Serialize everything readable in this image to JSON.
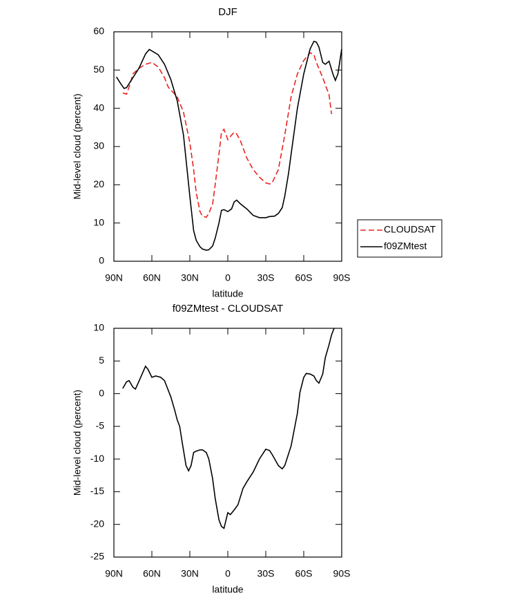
{
  "chart_data": [
    {
      "type": "line",
      "title": "DJF",
      "xlabel": "latitude",
      "ylabel": "Mid-level cloud (percent)",
      "xlim": [
        90,
        -90
      ],
      "xticks": [
        {
          "value": 90,
          "label": "90N"
        },
        {
          "value": 60,
          "label": "60N"
        },
        {
          "value": 30,
          "label": "30N"
        },
        0,
        {
          "value": -30,
          "label": "30S"
        },
        {
          "value": -60,
          "label": "60S"
        },
        {
          "value": -90,
          "label": "90S"
        }
      ],
      "ylim": [
        0,
        60
      ],
      "yticks": [
        0,
        10,
        20,
        30,
        40,
        50,
        60
      ],
      "legend": "outside right",
      "series": [
        {
          "name": "CLOUDSAT",
          "color": "#e8231f",
          "dash": true,
          "x": [
            83,
            80,
            77,
            75,
            70,
            65,
            60,
            55,
            50,
            47,
            45,
            40,
            35,
            30,
            27,
            25,
            22,
            20,
            17,
            15,
            12,
            10,
            7,
            5,
            3,
            0,
            -3,
            -5,
            -7,
            -10,
            -15,
            -20,
            -25,
            -30,
            -33,
            -35,
            -40,
            -45,
            -50,
            -55,
            -60,
            -65,
            -68,
            -70,
            -75,
            -80,
            -82
          ],
          "values": [
            44,
            43.7,
            46.5,
            49,
            50.5,
            51.5,
            52,
            50.8,
            48,
            45.5,
            44.8,
            43,
            39,
            31,
            24,
            18,
            13,
            11.8,
            11.5,
            12.5,
            15,
            20,
            28,
            33.7,
            34.5,
            31.8,
            33,
            33.7,
            33.3,
            31.5,
            27,
            24,
            22,
            20.5,
            20.2,
            20.5,
            24,
            33,
            43,
            49,
            52.5,
            54.5,
            54,
            52,
            48,
            43.5,
            38.5
          ]
        },
        {
          "name": "f09ZMtest",
          "color": "#000000",
          "dash": false,
          "x": [
            88,
            85,
            82,
            80,
            75,
            70,
            65,
            62,
            60,
            55,
            50,
            45,
            40,
            35,
            30,
            27,
            25,
            22,
            20,
            17,
            15,
            12,
            10,
            7,
            5,
            3,
            0,
            -3,
            -5,
            -7,
            -10,
            -15,
            -20,
            -25,
            -30,
            -33,
            -37,
            -40,
            -43,
            -45,
            -48,
            -50,
            -55,
            -60,
            -65,
            -68,
            -70,
            -72,
            -75,
            -77,
            -80,
            -83,
            -85,
            -87,
            -90
          ],
          "values": [
            48.2,
            46.6,
            45.2,
            45.4,
            48,
            50.6,
            54.2,
            55.4,
            55,
            54,
            51.5,
            47.5,
            42,
            33,
            17,
            8,
            5.5,
            3.8,
            3.2,
            2.9,
            3,
            4,
            6,
            10,
            13.3,
            13.5,
            13,
            13.7,
            15.5,
            16,
            15,
            13.7,
            12,
            11.4,
            11.4,
            11.7,
            11.8,
            12.5,
            14,
            17,
            23,
            28,
            40,
            49,
            55.5,
            57.5,
            57.3,
            56,
            52,
            51.5,
            52.3,
            49,
            47.3,
            49,
            55.5
          ]
        }
      ]
    },
    {
      "type": "line",
      "title": "f09ZMtest - CLOUDSAT",
      "xlabel": "latitude",
      "ylabel": "Mid-level cloud (percent)",
      "xlim": [
        90,
        -90
      ],
      "xticks": [
        {
          "value": 90,
          "label": "90N"
        },
        {
          "value": 60,
          "label": "60N"
        },
        {
          "value": 30,
          "label": "30N"
        },
        0,
        {
          "value": -30,
          "label": "30S"
        },
        {
          "value": -60,
          "label": "60S"
        },
        {
          "value": -90,
          "label": "90S"
        }
      ],
      "ylim": [
        -25,
        10
      ],
      "yticks": [
        -25,
        -20,
        -15,
        -10,
        -5,
        0,
        5,
        10
      ],
      "series": [
        {
          "color": "#000000",
          "dash": false,
          "x": [
            83,
            80,
            78,
            75,
            73,
            70,
            65,
            63,
            60,
            57,
            53,
            50,
            47,
            45,
            42,
            40,
            38,
            36,
            33,
            31,
            29,
            27,
            25,
            22,
            20,
            17,
            15,
            12,
            10,
            7,
            5,
            3,
            0,
            -2,
            -5,
            -8,
            -12,
            -15,
            -20,
            -25,
            -30,
            -33,
            -35,
            -40,
            -43,
            -45,
            -50,
            -55,
            -57,
            -60,
            -62,
            -65,
            -68,
            -70,
            -72,
            -75,
            -77,
            -80,
            -82,
            -84
          ],
          "values": [
            0.8,
            1.8,
            2,
            1,
            0.7,
            2,
            4.2,
            3.7,
            2.5,
            2.7,
            2.5,
            2,
            0.5,
            -0.5,
            -2.5,
            -4,
            -5,
            -7.5,
            -11,
            -11.8,
            -11,
            -9,
            -8.8,
            -8.6,
            -8.6,
            -9,
            -10,
            -13,
            -16,
            -19.3,
            -20.3,
            -20.6,
            -18.2,
            -18.5,
            -17.8,
            -17,
            -14.5,
            -13.5,
            -12,
            -10,
            -8.5,
            -8.7,
            -9.3,
            -11,
            -11.5,
            -11,
            -8,
            -3,
            0.2,
            2.5,
            3.1,
            3,
            2.7,
            2,
            1.6,
            3,
            5.5,
            7.5,
            9,
            10
          ]
        }
      ]
    }
  ]
}
